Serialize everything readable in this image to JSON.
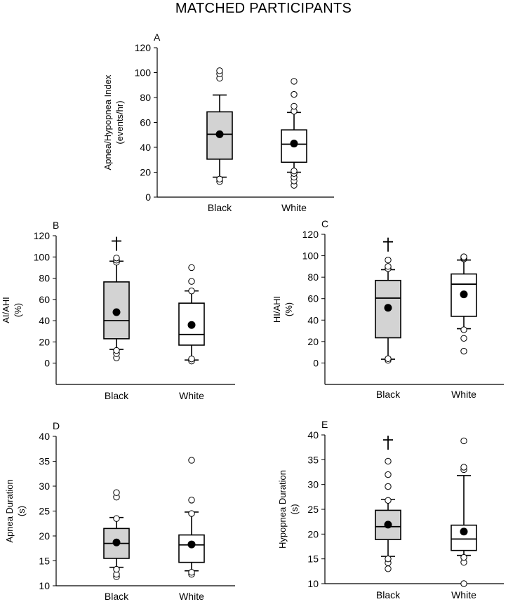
{
  "figure": {
    "title": "MATCHED PARTICIPANTS"
  },
  "colors": {
    "black_group_fill": "#d3d3d3",
    "white_group_fill": "#ffffff",
    "stroke": "#000000"
  },
  "chart_data": [
    {
      "panel": "A",
      "type": "box",
      "ylabel": [
        "Apnea/Hypopnea Index",
        "(events/hr)"
      ],
      "ylim": [
        0,
        120
      ],
      "yticks": [
        0,
        20,
        40,
        60,
        80,
        100,
        120
      ],
      "categories": [
        "Black",
        "White"
      ],
      "boxes": [
        {
          "group": "Black",
          "q1": 30.5,
          "median": 50.5,
          "q3": 68.5,
          "whisker_low": 16,
          "whisker_high": 82,
          "mean": 50.5,
          "outliers": [
            12.5,
            14.5,
            95.5,
            99,
            101.5
          ],
          "dagger": null
        },
        {
          "group": "White",
          "q1": 28,
          "median": 42.5,
          "q3": 54,
          "whisker_low": 20,
          "whisker_high": 68,
          "mean": 43,
          "outliers": [
            9.5,
            13,
            16,
            19,
            21,
            69,
            73,
            82.5,
            93
          ],
          "dagger": null
        }
      ]
    },
    {
      "panel": "B",
      "type": "box",
      "ylabel": [
        "AI/AHI",
        "(%)"
      ],
      "ylim": [
        -20,
        120
      ],
      "yticks": [
        0,
        20,
        40,
        60,
        80,
        100,
        120
      ],
      "categories": [
        "Black",
        "White"
      ],
      "boxes": [
        {
          "group": "Black",
          "q1": 23,
          "median": 40,
          "q3": 76.5,
          "whisker_low": 13,
          "whisker_high": 96,
          "mean": 48,
          "outliers": [
            5,
            9,
            12,
            95,
            97,
            99
          ],
          "dagger": 115
        },
        {
          "group": "White",
          "q1": 17,
          "median": 27,
          "q3": 56.5,
          "whisker_low": 3,
          "whisker_high": 68,
          "mean": 36,
          "outliers": [
            2,
            4,
            68,
            77,
            90
          ],
          "dagger": null
        }
      ]
    },
    {
      "panel": "C",
      "type": "box",
      "ylabel": [
        "HI/AHI",
        "(%)"
      ],
      "ylim": [
        -20,
        120
      ],
      "yticks": [
        0,
        20,
        40,
        60,
        80,
        100,
        120
      ],
      "categories": [
        "Black",
        "White"
      ],
      "boxes": [
        {
          "group": "Black",
          "q1": 23.5,
          "median": 60.5,
          "q3": 77,
          "whisker_low": 3.5,
          "whisker_high": 87,
          "mean": 51.5,
          "outliers": [
            2.5,
            4,
            88,
            90,
            96
          ],
          "dagger": 113
        },
        {
          "group": "White",
          "q1": 43.5,
          "median": 73.5,
          "q3": 83,
          "whisker_low": 32,
          "whisker_high": 96,
          "mean": 64,
          "outliers": [
            11,
            23,
            31,
            97,
            98,
            99
          ],
          "dagger": null
        }
      ]
    },
    {
      "panel": "D",
      "type": "box",
      "ylabel": [
        "Apnea Duration",
        "(s)"
      ],
      "ylim": [
        10,
        40
      ],
      "yticks": [
        10,
        15,
        20,
        25,
        30,
        35,
        40
      ],
      "categories": [
        "Black",
        "White"
      ],
      "boxes": [
        {
          "group": "Black",
          "q1": 15.5,
          "median": 18.5,
          "q3": 21.5,
          "whisker_low": 13.7,
          "whisker_high": 23.7,
          "mean": 18.7,
          "outliers": [
            11.8,
            12.3,
            13.3,
            23.5,
            27.8,
            28.7
          ],
          "dagger": null
        },
        {
          "group": "White",
          "q1": 14.7,
          "median": 18.2,
          "q3": 20.2,
          "whisker_low": 13,
          "whisker_high": 24.8,
          "mean": 18.3,
          "outliers": [
            12.3,
            12.7,
            24.5,
            27.2,
            35.2
          ],
          "dagger": null
        }
      ]
    },
    {
      "panel": "E",
      "type": "box",
      "ylabel": [
        "Hypopnea Duration",
        "(s)"
      ],
      "ylim": [
        10,
        40
      ],
      "yticks": [
        10,
        15,
        20,
        25,
        30,
        35,
        40
      ],
      "categories": [
        "Black",
        "White"
      ],
      "boxes": [
        {
          "group": "Black",
          "q1": 18.9,
          "median": 21.5,
          "q3": 24.8,
          "whisker_low": 15.5,
          "whisker_high": 27,
          "mean": 21.9,
          "outliers": [
            13,
            14.2,
            15,
            26.8,
            29.6,
            32,
            34.7
          ],
          "dagger": 39
        },
        {
          "group": "White",
          "q1": 16.7,
          "median": 19,
          "q3": 21.8,
          "whisker_low": 15.7,
          "whisker_high": 31.8,
          "mean": 20.5,
          "outliers": [
            10,
            14.3,
            15.3,
            33,
            33.5,
            38.8
          ],
          "dagger": null
        }
      ]
    }
  ]
}
